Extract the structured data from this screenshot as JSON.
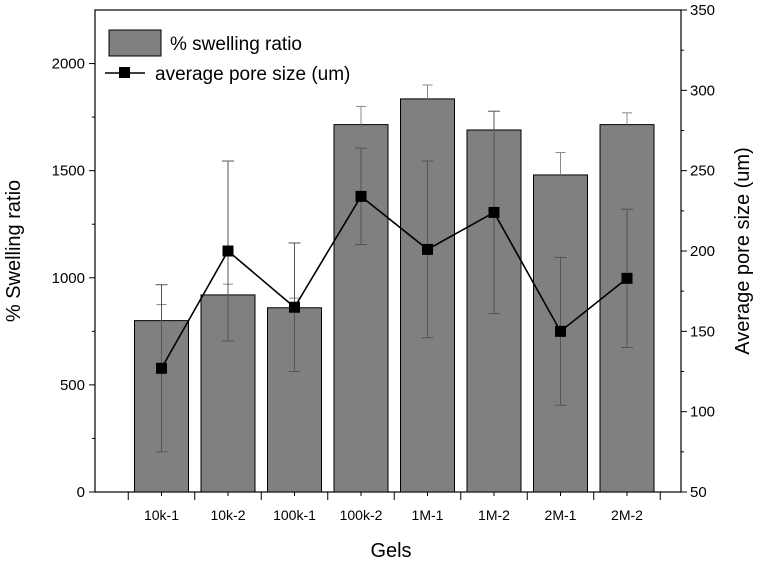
{
  "chart_data": {
    "type": "bar+line",
    "title": "",
    "xlabel": "Gels",
    "ylabel_left": "% Swelling ratio",
    "ylabel_right": "Average pore size (um)",
    "categories": [
      "10k-1",
      "10k-2",
      "100k-1",
      "100k-2",
      "1M-1",
      "1M-2",
      "2M-1",
      "2M-2"
    ],
    "ylim_left": [
      0,
      2250
    ],
    "yticks_left": [
      0,
      500,
      1000,
      1500,
      2000
    ],
    "ytick_labels_left": [
      "0",
      "500",
      "1000",
      "1500",
      "2000"
    ],
    "ylim_right": [
      50,
      350
    ],
    "yticks_right": [
      50,
      100,
      150,
      200,
      250,
      300,
      350
    ],
    "ytick_labels_right": [
      "50",
      "100",
      "150",
      "200",
      "250",
      "300",
      "350"
    ],
    "series": [
      {
        "name": "% swelling ratio",
        "kind": "bar",
        "axis": "left",
        "values": [
          800,
          920,
          860,
          1715,
          1835,
          1690,
          1480,
          1715
        ],
        "errors": [
          75,
          50,
          45,
          85,
          65,
          0,
          105,
          55
        ],
        "color": "#808080"
      },
      {
        "name": "average pore size (um)",
        "kind": "line",
        "axis": "right",
        "values": [
          127,
          200,
          165,
          234,
          201,
          224,
          150,
          183
        ],
        "errors": [
          52,
          56,
          40,
          30,
          55,
          63,
          46,
          43
        ],
        "color": "#000000"
      }
    ],
    "legend_position": "top-left",
    "grid": false
  }
}
